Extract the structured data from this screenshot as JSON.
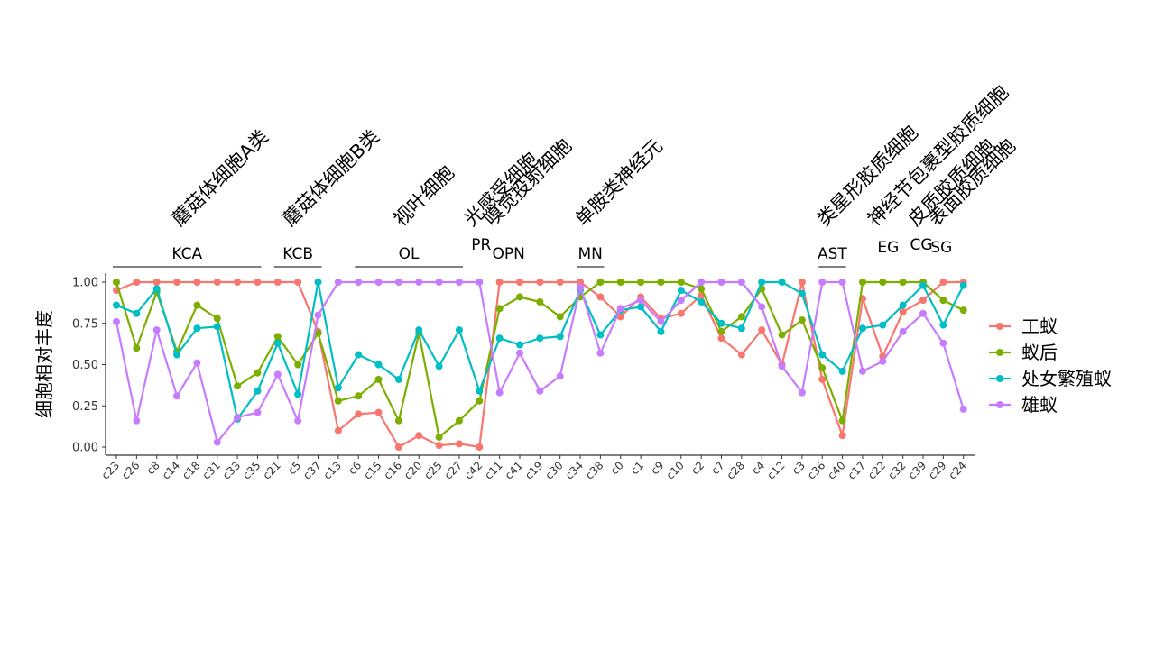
{
  "chart_data": {
    "type": "line",
    "ylabel": "细胞相对丰度",
    "ylim": [
      0,
      1.05
    ],
    "yticks": [
      0,
      0.25,
      0.5,
      0.75,
      1
    ],
    "ytick_labels": [
      "0.00",
      "0.25",
      "0.50",
      "0.75",
      "1.00"
    ],
    "categories": [
      "c23",
      "c26",
      "c8",
      "c14",
      "c18",
      "c31",
      "c33",
      "c35",
      "c21",
      "c5",
      "c37",
      "c13",
      "c6",
      "c15",
      "c16",
      "c20",
      "c25",
      "c27",
      "c42",
      "c11",
      "c41",
      "c19",
      "c30",
      "c34",
      "c38",
      "c0",
      "c1",
      "c9",
      "c10",
      "c2",
      "c7",
      "c28",
      "c4",
      "c12",
      "c3",
      "c36",
      "c40",
      "c17",
      "c22",
      "c32",
      "c39",
      "c29",
      "c24"
    ],
    "series": [
      {
        "name": "工蚁",
        "color": "#F8766D",
        "values": [
          0.95,
          1,
          1,
          1,
          1,
          1,
          1,
          1,
          1,
          1,
          0.7,
          0.1,
          0.2,
          0.21,
          0,
          0.07,
          0.01,
          0.02,
          0,
          1,
          1,
          1,
          1,
          1,
          0.91,
          0.79,
          0.91,
          0.78,
          0.81,
          0.92,
          0.66,
          0.56,
          0.71,
          0.5,
          1,
          0.41,
          0.07,
          0.9,
          0.55,
          0.82,
          0.89,
          1,
          1
        ]
      },
      {
        "name": "蚁后",
        "color": "#7CAE00",
        "values": [
          1,
          0.6,
          0.94,
          0.58,
          0.86,
          0.78,
          0.37,
          0.45,
          0.67,
          0.5,
          0.69,
          0.28,
          0.31,
          0.41,
          0.16,
          0.69,
          0.06,
          0.16,
          0.28,
          0.84,
          0.91,
          0.88,
          0.79,
          0.91,
          1,
          1,
          1,
          1,
          1,
          0.96,
          0.7,
          0.79,
          0.96,
          0.68,
          0.77,
          0.48,
          0.16,
          1,
          1,
          1,
          1,
          0.89,
          0.83
        ]
      },
      {
        "name": "处女繁殖蚁",
        "color": "#00BFC4",
        "values": [
          0.86,
          0.81,
          0.96,
          0.56,
          0.72,
          0.73,
          0.17,
          0.34,
          0.63,
          0.32,
          1,
          0.36,
          0.56,
          0.5,
          0.41,
          0.71,
          0.49,
          0.71,
          0.34,
          0.66,
          0.62,
          0.66,
          0.67,
          0.95,
          0.68,
          0.83,
          0.85,
          0.7,
          0.95,
          0.88,
          0.75,
          0.72,
          1,
          1,
          0.93,
          0.56,
          0.46,
          0.72,
          0.74,
          0.86,
          0.98,
          0.74,
          0.98
        ]
      },
      {
        "name": "雄蚁",
        "color": "#C77CFF",
        "values": [
          0.76,
          0.16,
          0.71,
          0.31,
          0.51,
          0.03,
          0.18,
          0.21,
          0.44,
          0.16,
          0.8,
          1,
          1,
          1,
          1,
          1,
          1,
          1,
          1,
          0.33,
          0.57,
          0.34,
          0.43,
          0.97,
          0.57,
          0.84,
          0.89,
          0.76,
          0.89,
          1,
          1,
          1,
          0.85,
          0.49,
          0.33,
          1,
          1,
          0.46,
          0.52,
          0.7,
          0.81,
          0.63,
          0.23
        ]
      }
    ],
    "groups": [
      {
        "label": "KCA",
        "cn": "蘑菇体细胞A类",
        "start": 0,
        "end": 7,
        "bracket": true
      },
      {
        "label": "KCB",
        "cn": "蘑菇体细胞B类",
        "start": 8,
        "end": 10,
        "bracket": true
      },
      {
        "label": "OL",
        "cn": "视叶细胞",
        "start": 12,
        "end": 17,
        "bracket": true
      },
      {
        "label": "PR",
        "cn": "光感受细胞",
        "start": 18,
        "end": 18,
        "bracket": false
      },
      {
        "label": "OPN",
        "cn": "嗅觉投射细胞",
        "start": 19,
        "end": 19,
        "bracket": false
      },
      {
        "label": "MN",
        "cn": "单胺类神经元",
        "start": 23,
        "end": 24,
        "bracket": true
      },
      {
        "label": "AST",
        "cn": "类星形胶质细胞",
        "start": 35,
        "end": 36,
        "bracket": true
      },
      {
        "label": "EG",
        "cn": "神经节包裹型胶质细胞",
        "start": 38,
        "end": 38,
        "bracket": false
      },
      {
        "label": "CG",
        "cn": "皮质胶质细胞",
        "start": 40,
        "end": 40,
        "bracket": false
      },
      {
        "label": "SG",
        "cn": "表面胶质细胞",
        "start": 41,
        "end": 41,
        "bracket": false
      }
    ],
    "legend": {
      "position": "right"
    },
    "grid": false
  }
}
